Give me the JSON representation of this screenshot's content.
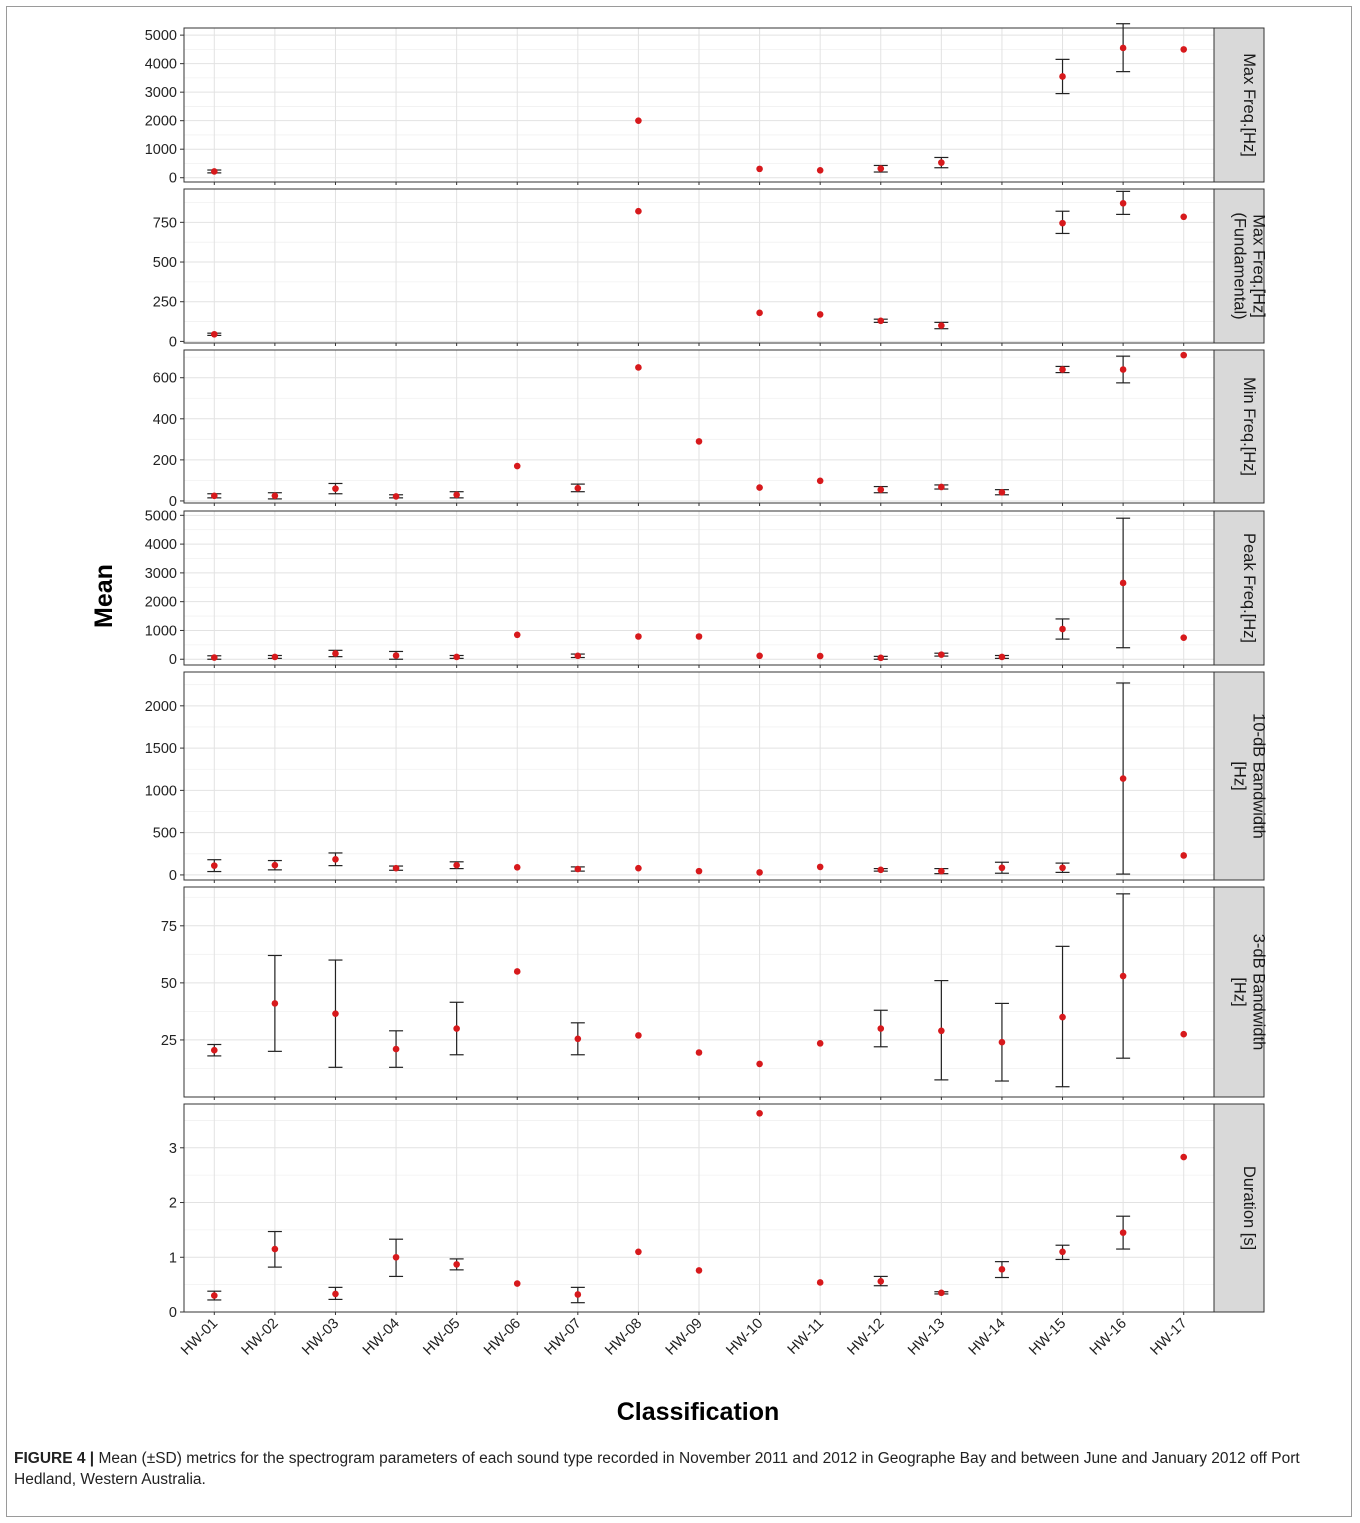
{
  "figure": {
    "y_axis_title": "Mean",
    "x_axis_title": "Classification",
    "caption_label": "FIGURE 4 |",
    "caption_text": " Mean (±SD) metrics for the spectrogram parameters of each sound type recorded in November 2011 and 2012 in Geographe Bay and between June and January 2012 off Port Hedland, Western Australia."
  },
  "chart_data": {
    "type": "scatter",
    "layout": "faceted, stacked panels with shared x axis, mean points with ±SD error bars",
    "categories": [
      "HW-01",
      "HW-02",
      "HW-03",
      "HW-04",
      "HW-05",
      "HW-06",
      "HW-07",
      "HW-08",
      "HW-09",
      "HW-10",
      "HW-11",
      "HW-12",
      "HW-13",
      "HW-14",
      "HW-15",
      "HW-16",
      "HW-17"
    ],
    "point_color": "#d7191c",
    "grid": true,
    "panels": [
      {
        "strip": [
          "Max Freq.[Hz]"
        ],
        "ylim": [
          -150,
          5250
        ],
        "yticks": [
          0,
          1000,
          2000,
          3000,
          4000,
          5000
        ],
        "points": [
          {
            "x": "HW-01",
            "mean": 220,
            "lo": 170,
            "hi": 270
          },
          {
            "x": "HW-08",
            "mean": 2000
          },
          {
            "x": "HW-10",
            "mean": 310
          },
          {
            "x": "HW-11",
            "mean": 260
          },
          {
            "x": "HW-12",
            "mean": 320,
            "lo": 200,
            "hi": 430
          },
          {
            "x": "HW-13",
            "mean": 530,
            "lo": 350,
            "hi": 710
          },
          {
            "x": "HW-15",
            "mean": 3550,
            "lo": 2950,
            "hi": 4150
          },
          {
            "x": "HW-16",
            "mean": 4550,
            "lo": 3720,
            "hi": 5400
          },
          {
            "x": "HW-17",
            "mean": 4500
          }
        ]
      },
      {
        "strip": [
          "Max Freq.[Hz]",
          "(Fundamental)"
        ],
        "ylim": [
          -10,
          960
        ],
        "yticks": [
          0,
          250,
          500,
          750
        ],
        "points": [
          {
            "x": "HW-01",
            "mean": 45,
            "lo": 38,
            "hi": 52
          },
          {
            "x": "HW-08",
            "mean": 820
          },
          {
            "x": "HW-10",
            "mean": 180
          },
          {
            "x": "HW-11",
            "mean": 170
          },
          {
            "x": "HW-12",
            "mean": 130,
            "lo": 120,
            "hi": 140
          },
          {
            "x": "HW-13",
            "mean": 100,
            "lo": 80,
            "hi": 120
          },
          {
            "x": "HW-15",
            "mean": 745,
            "lo": 680,
            "hi": 820
          },
          {
            "x": "HW-16",
            "mean": 870,
            "lo": 800,
            "hi": 945
          },
          {
            "x": "HW-17",
            "mean": 785
          }
        ]
      },
      {
        "strip": [
          "Min Freq.[Hz]"
        ],
        "ylim": [
          -10,
          735
        ],
        "yticks": [
          0,
          200,
          400,
          600
        ],
        "points": [
          {
            "x": "HW-01",
            "mean": 25,
            "lo": 15,
            "hi": 35
          },
          {
            "x": "HW-02",
            "mean": 25,
            "lo": 10,
            "hi": 40
          },
          {
            "x": "HW-03",
            "mean": 60,
            "lo": 35,
            "hi": 85
          },
          {
            "x": "HW-04",
            "mean": 22,
            "lo": 15,
            "hi": 30
          },
          {
            "x": "HW-05",
            "mean": 30,
            "lo": 15,
            "hi": 45
          },
          {
            "x": "HW-06",
            "mean": 170
          },
          {
            "x": "HW-07",
            "mean": 62,
            "lo": 45,
            "hi": 82
          },
          {
            "x": "HW-08",
            "mean": 650
          },
          {
            "x": "HW-09",
            "mean": 290
          },
          {
            "x": "HW-10",
            "mean": 65
          },
          {
            "x": "HW-11",
            "mean": 98
          },
          {
            "x": "HW-12",
            "mean": 55,
            "lo": 40,
            "hi": 70
          },
          {
            "x": "HW-13",
            "mean": 68,
            "lo": 58,
            "hi": 78
          },
          {
            "x": "HW-14",
            "mean": 42,
            "lo": 30,
            "hi": 55
          },
          {
            "x": "HW-15",
            "mean": 640,
            "lo": 625,
            "hi": 655
          },
          {
            "x": "HW-16",
            "mean": 640,
            "lo": 575,
            "hi": 705
          },
          {
            "x": "HW-17",
            "mean": 710
          }
        ]
      },
      {
        "strip": [
          "Peak Freq.[Hz]"
        ],
        "ylim": [
          -200,
          5150
        ],
        "yticks": [
          0,
          1000,
          2000,
          3000,
          4000,
          5000
        ],
        "points": [
          {
            "x": "HW-01",
            "mean": 60,
            "lo": 0,
            "hi": 120
          },
          {
            "x": "HW-02",
            "mean": 80,
            "lo": 30,
            "hi": 130
          },
          {
            "x": "HW-03",
            "mean": 200,
            "lo": 90,
            "hi": 310
          },
          {
            "x": "HW-04",
            "mean": 130,
            "lo": 0,
            "hi": 270
          },
          {
            "x": "HW-05",
            "mean": 80,
            "lo": 30,
            "hi": 130
          },
          {
            "x": "HW-06",
            "mean": 850
          },
          {
            "x": "HW-07",
            "mean": 120,
            "lo": 60,
            "hi": 180
          },
          {
            "x": "HW-08",
            "mean": 790
          },
          {
            "x": "HW-09",
            "mean": 790
          },
          {
            "x": "HW-10",
            "mean": 120
          },
          {
            "x": "HW-11",
            "mean": 110
          },
          {
            "x": "HW-12",
            "mean": 50,
            "lo": 0,
            "hi": 100
          },
          {
            "x": "HW-13",
            "mean": 160,
            "lo": 110,
            "hi": 210
          },
          {
            "x": "HW-14",
            "mean": 80,
            "lo": 30,
            "hi": 130
          },
          {
            "x": "HW-15",
            "mean": 1050,
            "lo": 700,
            "hi": 1400
          },
          {
            "x": "HW-16",
            "mean": 2650,
            "lo": 400,
            "hi": 4900
          },
          {
            "x": "HW-17",
            "mean": 750
          }
        ]
      },
      {
        "strip": [
          "10-dB Bandwidth",
          "[Hz]"
        ],
        "ylim": [
          -60,
          2400
        ],
        "yticks": [
          0,
          500,
          1000,
          1500,
          2000
        ],
        "points": [
          {
            "x": "HW-01",
            "mean": 110,
            "lo": 40,
            "hi": 180
          },
          {
            "x": "HW-02",
            "mean": 115,
            "lo": 60,
            "hi": 170
          },
          {
            "x": "HW-03",
            "mean": 185,
            "lo": 110,
            "hi": 260
          },
          {
            "x": "HW-04",
            "mean": 80,
            "lo": 55,
            "hi": 105
          },
          {
            "x": "HW-05",
            "mean": 115,
            "lo": 75,
            "hi": 155
          },
          {
            "x": "HW-06",
            "mean": 90
          },
          {
            "x": "HW-07",
            "mean": 70,
            "lo": 45,
            "hi": 95
          },
          {
            "x": "HW-08",
            "mean": 80
          },
          {
            "x": "HW-09",
            "mean": 45
          },
          {
            "x": "HW-10",
            "mean": 30
          },
          {
            "x": "HW-11",
            "mean": 95
          },
          {
            "x": "HW-12",
            "mean": 60,
            "lo": 45,
            "hi": 75
          },
          {
            "x": "HW-13",
            "mean": 45,
            "lo": 15,
            "hi": 75
          },
          {
            "x": "HW-14",
            "mean": 85,
            "lo": 20,
            "hi": 150
          },
          {
            "x": "HW-15",
            "mean": 85,
            "lo": 30,
            "hi": 140
          },
          {
            "x": "HW-16",
            "mean": 1140,
            "lo": 10,
            "hi": 2270
          },
          {
            "x": "HW-17",
            "mean": 230
          }
        ]
      },
      {
        "strip": [
          "3-dB Bandwidth",
          "[Hz]"
        ],
        "ylim": [
          0,
          92
        ],
        "yticks": [
          25,
          50,
          75
        ],
        "points": [
          {
            "x": "HW-01",
            "mean": 20.5,
            "lo": 18,
            "hi": 23
          },
          {
            "x": "HW-02",
            "mean": 41,
            "lo": 20,
            "hi": 62
          },
          {
            "x": "HW-03",
            "mean": 36.5,
            "lo": 13,
            "hi": 60
          },
          {
            "x": "HW-04",
            "mean": 21,
            "lo": 13,
            "hi": 29
          },
          {
            "x": "HW-05",
            "mean": 30,
            "lo": 18.5,
            "hi": 41.5
          },
          {
            "x": "HW-06",
            "mean": 55
          },
          {
            "x": "HW-07",
            "mean": 25.5,
            "lo": 18.5,
            "hi": 32.5
          },
          {
            "x": "HW-08",
            "mean": 27
          },
          {
            "x": "HW-09",
            "mean": 19.5
          },
          {
            "x": "HW-10",
            "mean": 14.5
          },
          {
            "x": "HW-11",
            "mean": 23.5
          },
          {
            "x": "HW-12",
            "mean": 30,
            "lo": 22,
            "hi": 38
          },
          {
            "x": "HW-13",
            "mean": 29,
            "lo": 7.5,
            "hi": 51
          },
          {
            "x": "HW-14",
            "mean": 24,
            "lo": 7,
            "hi": 41
          },
          {
            "x": "HW-15",
            "mean": 35,
            "lo": 4.5,
            "hi": 66
          },
          {
            "x": "HW-16",
            "mean": 53,
            "lo": 17,
            "hi": 89
          },
          {
            "x": "HW-17",
            "mean": 27.5
          }
        ]
      },
      {
        "strip": [
          "Duration [s]"
        ],
        "ylim": [
          0,
          3.8
        ],
        "yticks": [
          0,
          1,
          2,
          3
        ],
        "points": [
          {
            "x": "HW-01",
            "mean": 0.3,
            "lo": 0.22,
            "hi": 0.38
          },
          {
            "x": "HW-02",
            "mean": 1.15,
            "lo": 0.82,
            "hi": 1.47
          },
          {
            "x": "HW-03",
            "mean": 0.33,
            "lo": 0.23,
            "hi": 0.45
          },
          {
            "x": "HW-04",
            "mean": 1.0,
            "lo": 0.65,
            "hi": 1.33
          },
          {
            "x": "HW-05",
            "mean": 0.87,
            "lo": 0.77,
            "hi": 0.97
          },
          {
            "x": "HW-06",
            "mean": 0.52
          },
          {
            "x": "HW-07",
            "mean": 0.32,
            "lo": 0.17,
            "hi": 0.45
          },
          {
            "x": "HW-08",
            "mean": 1.1
          },
          {
            "x": "HW-09",
            "mean": 0.76
          },
          {
            "x": "HW-10",
            "mean": 3.63
          },
          {
            "x": "HW-11",
            "mean": 0.54
          },
          {
            "x": "HW-12",
            "mean": 0.56,
            "lo": 0.48,
            "hi": 0.65
          },
          {
            "x": "HW-13",
            "mean": 0.35,
            "lo": 0.33,
            "hi": 0.37
          },
          {
            "x": "HW-14",
            "mean": 0.78,
            "lo": 0.63,
            "hi": 0.92
          },
          {
            "x": "HW-15",
            "mean": 1.1,
            "lo": 0.96,
            "hi": 1.22
          },
          {
            "x": "HW-16",
            "mean": 1.45,
            "lo": 1.15,
            "hi": 1.75
          },
          {
            "x": "HW-17",
            "mean": 2.83
          }
        ]
      }
    ]
  }
}
